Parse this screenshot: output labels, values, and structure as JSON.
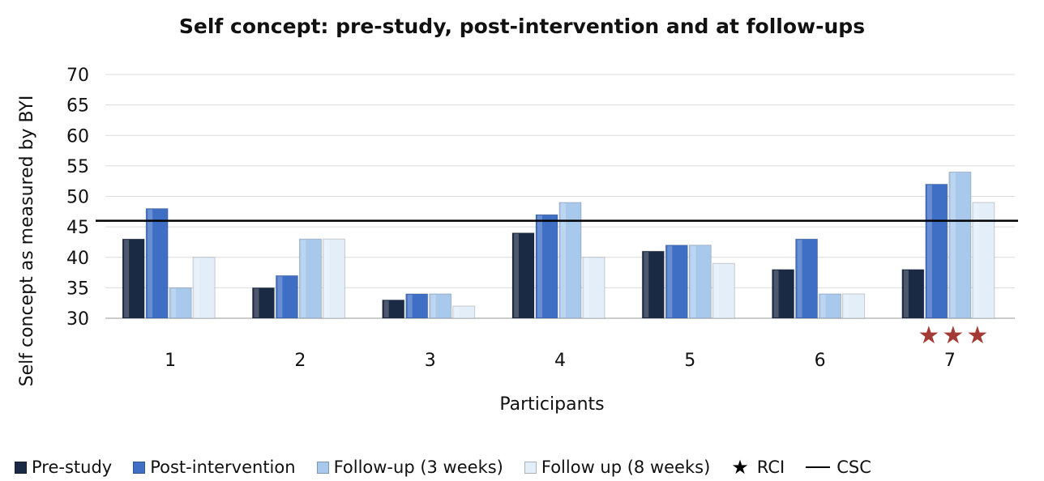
{
  "chart_data": {
    "type": "bar",
    "title": "Self concept: pre-study, post-intervention and at follow-ups",
    "xlabel": "Participants",
    "ylabel": "Self concept as measured by BYI",
    "ylim": [
      30,
      70
    ],
    "yticks": [
      "30",
      "35",
      "40",
      "45",
      "50",
      "55",
      "60",
      "65",
      "70"
    ],
    "categories": [
      "1",
      "2",
      "3",
      "4",
      "5",
      "6",
      "7"
    ],
    "series": [
      {
        "name": "Pre-study",
        "color": "#1b2a44",
        "values": [
          43,
          35,
          33,
          44,
          41,
          38,
          38
        ]
      },
      {
        "name": "Post-intervention",
        "color": "#3f6fc4",
        "values": [
          48,
          37,
          34,
          47,
          42,
          43,
          52
        ]
      },
      {
        "name": "Follow-up (3 weeks)",
        "color": "#a9c9ec",
        "values": [
          35,
          43,
          34,
          49,
          42,
          34,
          54
        ]
      },
      {
        "name": "Follow up (8 weeks)",
        "color": "#e3eef9",
        "values": [
          40,
          43,
          32,
          40,
          39,
          34,
          49
        ]
      }
    ],
    "reference_line": {
      "name": "CSC",
      "value": 46
    },
    "rci_markers": {
      "name": "RCI",
      "symbol": "★",
      "category": "7",
      "count": 3,
      "color": "#a33a35"
    },
    "grid": true,
    "legend_position": "bottom"
  }
}
